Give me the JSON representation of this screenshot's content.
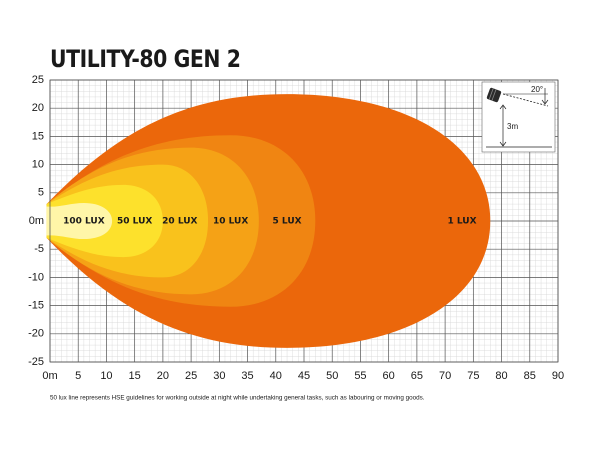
{
  "chart_data": {
    "type": "isolux",
    "title": "UTILITY-80 GEN 2",
    "footnote": "50 lux line represents HSE guidelines for working outside at night while undertaking general tasks, such as labouring or moving goods.",
    "xlim": [
      0,
      90
    ],
    "ylim": [
      -25,
      25
    ],
    "xticks": [
      {
        "value": 0,
        "label": "0m"
      },
      5,
      10,
      15,
      20,
      25,
      30,
      35,
      40,
      45,
      50,
      55,
      60,
      65,
      70,
      75,
      80,
      85,
      90
    ],
    "yticks": [
      25,
      20,
      15,
      10,
      5,
      {
        "value": 0,
        "label": "0m"
      },
      -5,
      -10,
      -15,
      -20,
      -25
    ],
    "minor_grid": 1,
    "contours": [
      {
        "name": "1 LUX",
        "color": "#eb670b",
        "reach": 78,
        "peak": 42,
        "width": 22.5
      },
      {
        "name": "5 LUX",
        "color": "#f08512",
        "reach": 47,
        "peak": 32,
        "width": 15.2
      },
      {
        "name": "10 LUX",
        "color": "#f5a216",
        "reach": 37,
        "peak": 25,
        "width": 13
      },
      {
        "name": "20 LUX",
        "color": "#f9c21c",
        "reach": 28,
        "peak": 20,
        "width": 10
      },
      {
        "name": "50 LUX",
        "color": "#fde12c",
        "reach": 20,
        "peak": 13,
        "width": 6.4
      },
      {
        "name": "100 LUX",
        "color": "#fff6a8",
        "reach": 11,
        "peak": 6,
        "width": 3.2
      }
    ],
    "inset": {
      "angle_label": "20°",
      "height_label": "3m"
    }
  }
}
